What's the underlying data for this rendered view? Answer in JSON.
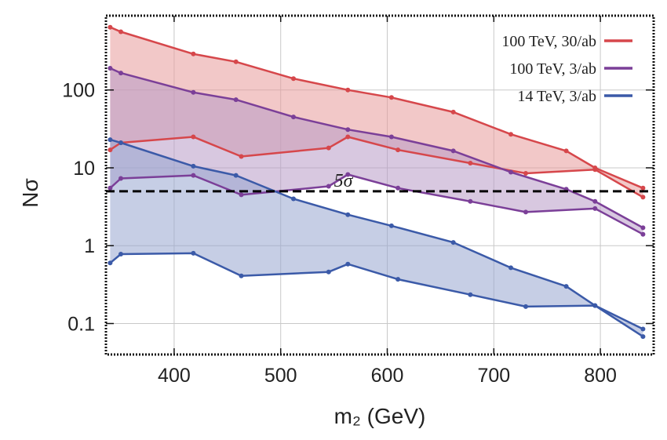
{
  "chart_data": {
    "type": "area",
    "xlabel": "m₂ (GeV)",
    "ylabel": "Nσ",
    "y_scale": "log",
    "xlim": [
      336,
      850
    ],
    "ylim": [
      0.04,
      900
    ],
    "x_ticks": [
      400,
      500,
      600,
      700,
      800
    ],
    "x_tick_labels": [
      "400",
      "500",
      "600",
      "700",
      "800"
    ],
    "y_ticks": [
      0.1,
      1,
      10,
      100
    ],
    "y_tick_labels": [
      "0.1",
      "1",
      "10",
      "100"
    ],
    "grid": true,
    "legend_position": "top-right",
    "reference_line": {
      "y": 5,
      "label": "5σ",
      "style": "dashed"
    },
    "series": [
      {
        "name": "100 TeV, 30/ab",
        "color": "#d6474b",
        "fill": "#e89a9b",
        "upper": {
          "x": [
            340,
            350,
            418,
            458,
            512,
            563,
            604,
            662,
            716,
            768,
            795,
            840
          ],
          "y": [
            640,
            560,
            290,
            230,
            140,
            100,
            80,
            52,
            27,
            16.5,
            10,
            5.5
          ]
        },
        "lower": {
          "x": [
            340,
            350,
            418,
            463,
            545,
            563,
            610,
            678,
            730,
            795,
            840
          ],
          "y": [
            17,
            21,
            25,
            14,
            18,
            25,
            17,
            11.5,
            8.5,
            9.5,
            4.2
          ]
        }
      },
      {
        "name": "100 TeV, 3/ab",
        "color": "#7b3f98",
        "fill": "#b89ac7",
        "upper": {
          "x": [
            340,
            350,
            418,
            458,
            512,
            563,
            604,
            662,
            716,
            768,
            795,
            840
          ],
          "y": [
            190,
            165,
            93,
            75,
            45,
            31,
            25,
            16.5,
            8.8,
            5.3,
            3.7,
            1.7
          ]
        },
        "lower": {
          "x": [
            340,
            350,
            418,
            463,
            545,
            563,
            610,
            678,
            730,
            795,
            840
          ],
          "y": [
            5.5,
            7.3,
            8,
            4.5,
            5.8,
            8.2,
            5.5,
            3.7,
            2.7,
            3,
            1.4
          ]
        }
      },
      {
        "name": "14 TeV, 3/ab",
        "color": "#3b5aa8",
        "fill": "#98a5d0",
        "upper": {
          "x": [
            340,
            350,
            418,
            458,
            512,
            563,
            604,
            662,
            716,
            768,
            795,
            840
          ],
          "y": [
            23,
            21,
            10.5,
            8,
            4,
            2.5,
            1.8,
            1.1,
            0.52,
            0.3,
            0.17,
            0.085
          ]
        },
        "lower": {
          "x": [
            340,
            350,
            418,
            463,
            545,
            563,
            610,
            678,
            730,
            795,
            840
          ],
          "y": [
            0.6,
            0.78,
            0.8,
            0.41,
            0.46,
            0.58,
            0.37,
            0.235,
            0.165,
            0.17,
            0.068
          ]
        }
      }
    ]
  }
}
